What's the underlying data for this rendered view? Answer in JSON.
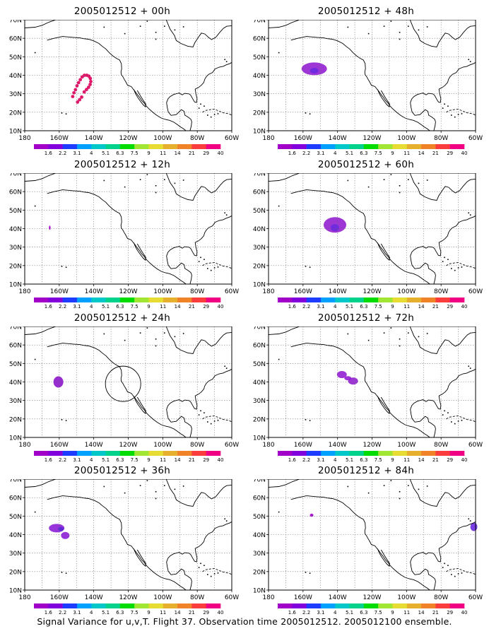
{
  "figure": {
    "footer": "Signal Variance for u,v,T. Flight 37. Observation time 2005012512. 2005012100 ensemble."
  },
  "axes": {
    "lat_ticks": [
      "70N",
      "60N",
      "50N",
      "40N",
      "30N",
      "20N",
      "10N"
    ],
    "lon_ticks": [
      "180",
      "160W",
      "140W",
      "120W",
      "100W",
      "80W",
      "60W"
    ]
  },
  "colorbar": {
    "labels": [
      "1.6",
      "2.2",
      "3.1",
      "4",
      "5.1",
      "6.3",
      "7.5",
      "9",
      "11",
      "14",
      "21",
      "29",
      "40"
    ],
    "colors": [
      "#a000c8",
      "#8200dc",
      "#1e3cff",
      "#00a0ff",
      "#00c8c8",
      "#00d28c",
      "#00dc00",
      "#a0e632",
      "#e6dc32",
      "#e6af2d",
      "#f08228",
      "#fa3c3c",
      "#f00082"
    ]
  },
  "panels": [
    {
      "title": "2005012512 + 00h"
    },
    {
      "title": "2005012512 + 48h"
    },
    {
      "title": "2005012512 + 12h"
    },
    {
      "title": "2005012512 + 60h"
    },
    {
      "title": "2005012512 + 24h"
    },
    {
      "title": "2005012512 + 72h"
    },
    {
      "title": "2005012512 + 36h"
    },
    {
      "title": "2005012512 + 84h"
    }
  ]
}
